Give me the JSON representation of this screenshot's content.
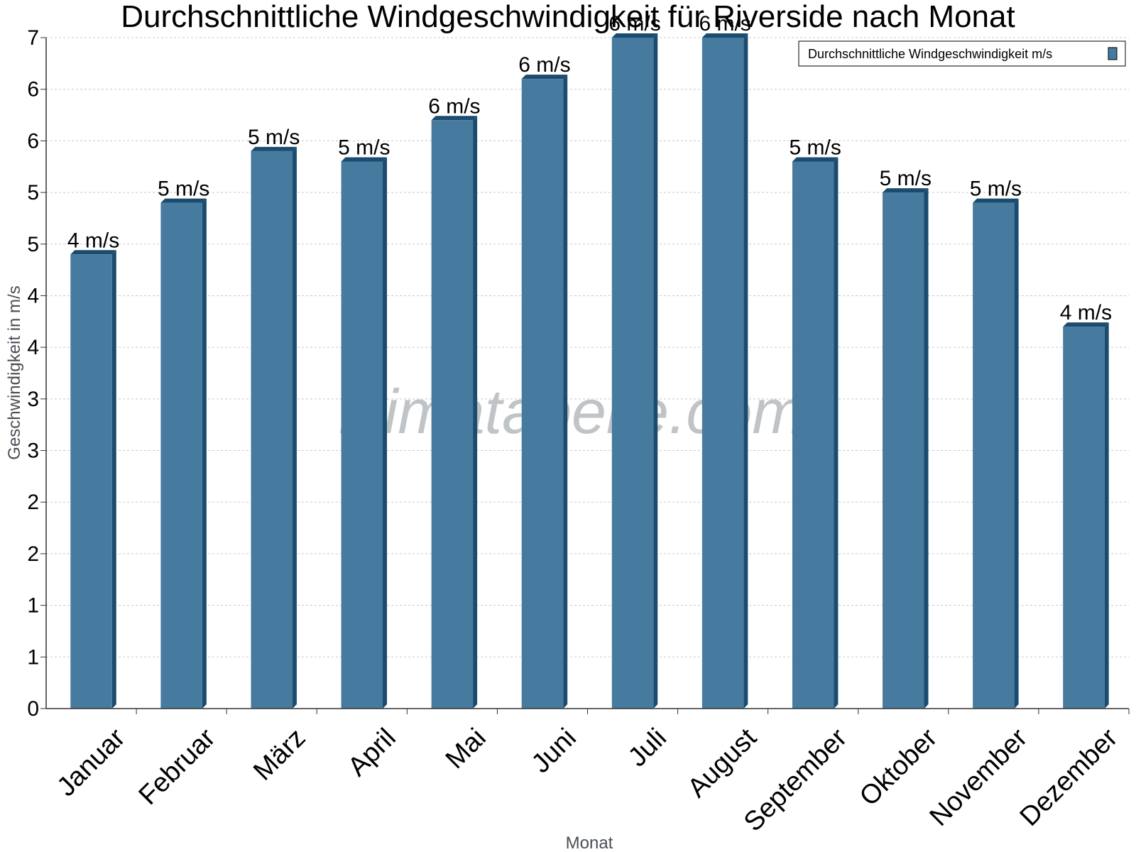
{
  "chart_data": {
    "type": "bar",
    "title": "Durchschnittliche Windgeschwindigkeit für Riverside nach Monat",
    "xlabel": "Monat",
    "ylabel": "Geschwindigkeit in m/s",
    "watermark": "klimatabelle.com",
    "ylim": [
      0,
      6.5
    ],
    "y_ticks": [
      {
        "value": 0,
        "label": "0"
      },
      {
        "value": 0.5,
        "label": "1"
      },
      {
        "value": 1,
        "label": "1"
      },
      {
        "value": 1.5,
        "label": "2"
      },
      {
        "value": 2,
        "label": "2"
      },
      {
        "value": 2.5,
        "label": "3"
      },
      {
        "value": 3,
        "label": "3"
      },
      {
        "value": 3.5,
        "label": "4"
      },
      {
        "value": 4,
        "label": "4"
      },
      {
        "value": 4.5,
        "label": "5"
      },
      {
        "value": 5,
        "label": "5"
      },
      {
        "value": 5.5,
        "label": "6"
      },
      {
        "value": 6,
        "label": "6"
      },
      {
        "value": 6.5,
        "label": "7"
      }
    ],
    "grid": true,
    "legend_position": "top-right",
    "categories": [
      "Januar",
      "Februar",
      "März",
      "April",
      "Mai",
      "Juni",
      "Juli",
      "August",
      "September",
      "Oktober",
      "November",
      "Dezember"
    ],
    "series": [
      {
        "name": "Durchschnittliche Windgeschwindigkeit m/s",
        "values": [
          4.4,
          4.9,
          5.4,
          5.3,
          5.7,
          6.1,
          6.5,
          6.5,
          5.3,
          5.0,
          4.9,
          3.7
        ],
        "labels": [
          "4 m/s",
          "5 m/s",
          "5 m/s",
          "5 m/s",
          "6 m/s",
          "6 m/s",
          "6 m/s",
          "6 m/s",
          "5 m/s",
          "5 m/s",
          "5 m/s",
          "4 m/s"
        ]
      }
    ],
    "colors": {
      "bar_face": "#467a9e",
      "bar_side": "#1b4b6e",
      "grid": "#c8c8c8",
      "axis": "#333333"
    }
  }
}
